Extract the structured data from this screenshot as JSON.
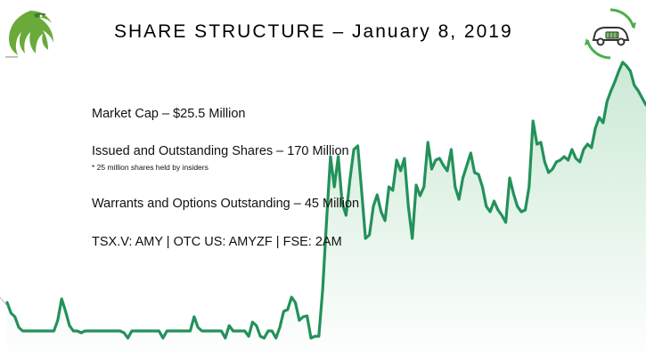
{
  "slide": {
    "title": "SHARE STRUCTURE – January 8, 2019",
    "stats": [
      "Market Cap – $25.5 Million",
      "Issued and Outstanding Shares – 170 Million",
      "* 25 million shares held by insiders",
      "Warrants and Options Outstanding – 45 Million",
      "TSX.V: AMY | OTC US: AMYZF | FSE: 2AM"
    ]
  },
  "icons": {
    "logo": "eagle-logo-icon",
    "car": "electric-car-recycle-icon"
  },
  "colors": {
    "line": "#23915a",
    "fill_top": "#c9e8d3",
    "logo_green": "#6aaa3a",
    "car_green": "#4cae4c"
  },
  "chart_data": {
    "type": "area",
    "title": "",
    "xlabel": "",
    "ylabel": "",
    "grid": false,
    "series": [
      {
        "values": [
          340,
          352,
          356,
          368,
          372,
          372,
          372,
          372,
          372,
          372,
          372,
          372,
          372,
          360,
          336,
          350,
          366,
          372,
          372,
          374,
          372,
          372,
          372,
          372,
          372,
          372,
          372,
          372,
          372,
          372,
          374,
          380,
          372,
          372,
          372,
          372,
          372,
          372,
          372,
          372,
          380,
          372,
          372,
          372,
          372,
          372,
          372,
          372,
          356,
          368,
          372,
          372,
          372,
          372,
          372,
          372,
          380,
          366,
          372,
          372,
          372,
          372,
          378,
          362,
          366,
          378,
          380,
          372,
          372,
          380,
          368,
          350,
          348,
          334,
          340,
          360,
          356,
          355,
          380,
          378,
          378,
          326,
          248,
          176,
          210,
          176,
          228,
          242,
          202,
          168,
          164,
          214,
          268,
          264,
          232,
          219,
          238,
          248,
          210,
          214,
          180,
          192,
          178,
          232,
          268,
          208,
          220,
          210,
          160,
          190,
          180,
          178,
          186,
          192,
          168,
          210,
          224,
          200,
          186,
          172,
          194,
          196,
          210,
          232,
          238,
          226,
          236,
          242,
          250,
          200,
          218,
          232,
          238,
          236,
          210,
          136,
          162,
          160,
          182,
          194,
          190,
          182,
          180,
          176,
          180,
          168,
          178,
          182,
          168,
          162,
          166,
          144,
          132,
          138,
          114,
          102,
          92,
          80,
          70,
          74,
          80,
          96,
          102,
          110,
          118
        ]
      }
    ]
  }
}
